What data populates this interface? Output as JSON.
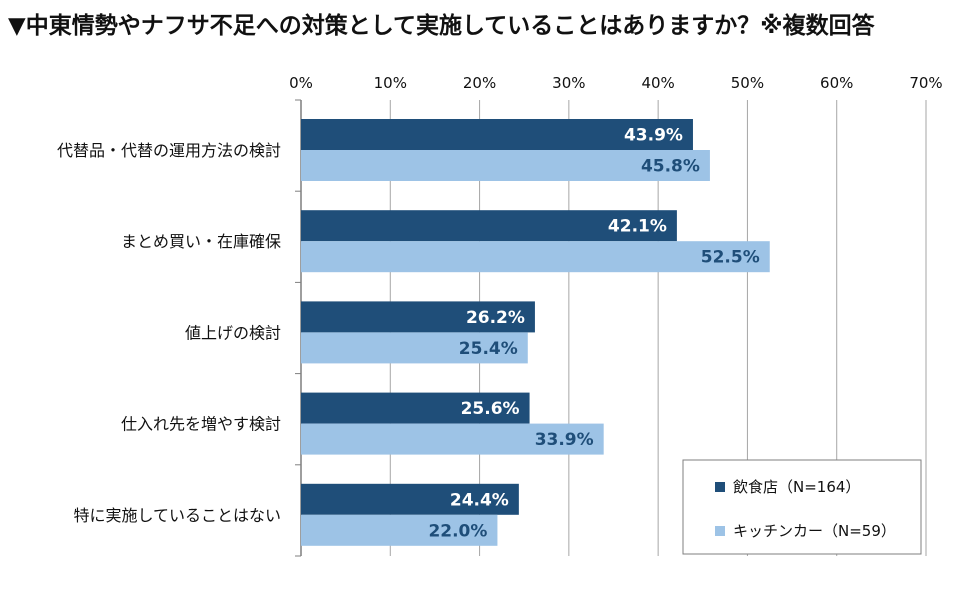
{
  "title": "▼中東情勢やナフサ不足への対策として実施していることはありますか？※複数回答",
  "chart_data": {
    "type": "bar",
    "orientation": "horizontal",
    "categories": [
      "代替品・代替の運用方法の検討",
      "まとめ買い・在庫確保",
      "値上げの検討",
      "仕入れ先を増やす検討",
      "特に実施していることはない"
    ],
    "series": [
      {
        "name": "飲食店（N=164）",
        "values": [
          43.9,
          42.1,
          26.2,
          25.6,
          24.4
        ],
        "color": "#1f4e79",
        "label_color": "#ffffff"
      },
      {
        "name": "キッチンカー（N=59）",
        "values": [
          45.8,
          52.5,
          25.4,
          33.9,
          22.0
        ],
        "color": "#9dc3e6",
        "label_color": "#1f4e79"
      }
    ],
    "xlim": [
      0,
      70
    ],
    "ticks": [
      0,
      10,
      20,
      30,
      40,
      50,
      60,
      70
    ],
    "tick_suffix": "%",
    "value_suffix": "%",
    "grid": true,
    "legend_position": "bottom-right"
  }
}
